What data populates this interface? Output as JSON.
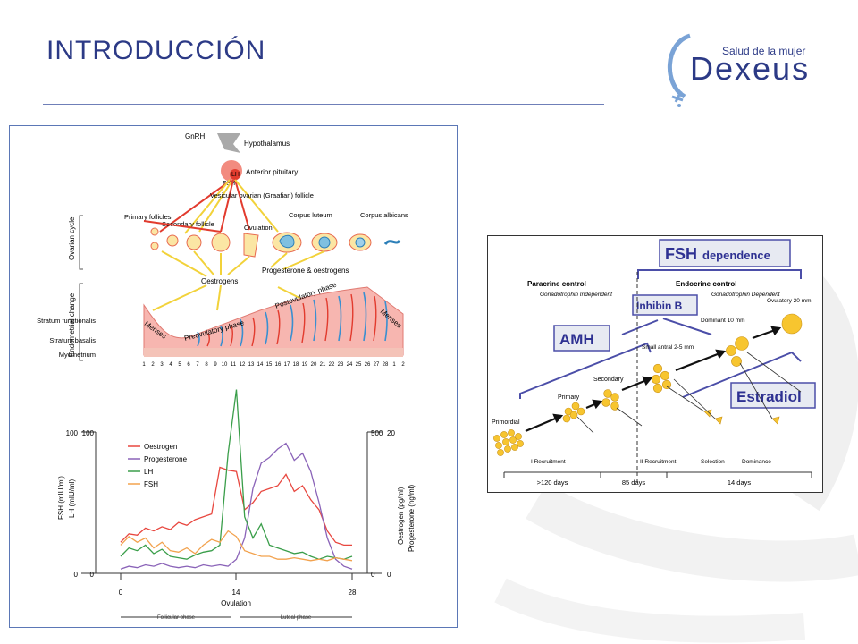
{
  "slide": {
    "title": "INTRODUCCIÓN",
    "logo_tagline": "Salud de la mujer",
    "logo_name": "Dexeus"
  },
  "cycle_diagram": {
    "hormones": [
      "GnRH",
      "Hypothalamus",
      "Anterior pituitary",
      "LH",
      "FSH"
    ],
    "ovarian_labels": [
      "Primary follicles",
      "Secondary follicle",
      "Vesicular ovarian (Graafian) follicle",
      "Ovulation",
      "Corpus luteum",
      "Corpus albicans"
    ],
    "ovarian_cycle_label": "Ovarian cycle",
    "endometrial_change_label": "Endometrial change",
    "oestrogens_label": "Oestrogens",
    "progesterone_label": "Progesterone & oestrogens",
    "layers": [
      "Stratum functionalis",
      "Stratum basalis",
      "Myometrium"
    ],
    "phases": [
      "Menses",
      "Preovulatory phase",
      "Postovulatory phase",
      "Menses"
    ],
    "day_numbers": [
      "1",
      "2",
      "3",
      "4",
      "5",
      "6",
      "7",
      "8",
      "9",
      "10",
      "11",
      "12",
      "13",
      "14",
      "15",
      "16",
      "17",
      "18",
      "19",
      "20",
      "21",
      "22",
      "23",
      "24",
      "25",
      "26",
      "27",
      "28",
      "1",
      "2"
    ]
  },
  "chart_data": {
    "type": "line",
    "x": [
      0,
      1,
      2,
      3,
      4,
      5,
      6,
      7,
      8,
      9,
      10,
      11,
      12,
      13,
      14,
      15,
      16,
      17,
      18,
      19,
      20,
      21,
      22,
      23,
      24,
      25,
      26,
      27,
      28
    ],
    "series": [
      {
        "name": "Oestrogen",
        "color": "#e8473f",
        "values": [
          22,
          28,
          27,
          32,
          30,
          33,
          31,
          36,
          34,
          38,
          40,
          42,
          75,
          73,
          72,
          45,
          50,
          58,
          60,
          62,
          70,
          58,
          62,
          52,
          45,
          30,
          22,
          20,
          20
        ]
      },
      {
        "name": "Progesterone",
        "color": "#8a63b8",
        "values": [
          3,
          5,
          4,
          6,
          5,
          7,
          5,
          4,
          5,
          4,
          6,
          5,
          6,
          5,
          10,
          25,
          60,
          78,
          82,
          88,
          92,
          80,
          85,
          72,
          50,
          25,
          10,
          5,
          3
        ]
      },
      {
        "name": "LH",
        "color": "#3a9e4a",
        "values": [
          12,
          18,
          16,
          20,
          14,
          17,
          12,
          11,
          10,
          13,
          15,
          16,
          20,
          85,
          130,
          40,
          25,
          35,
          20,
          18,
          16,
          14,
          15,
          12,
          10,
          12,
          11,
          10,
          12
        ]
      },
      {
        "name": "FSH",
        "color": "#f2a24e",
        "values": [
          20,
          26,
          22,
          25,
          18,
          22,
          16,
          15,
          18,
          14,
          20,
          24,
          22,
          30,
          26,
          16,
          14,
          12,
          12,
          10,
          10,
          11,
          10,
          9,
          10,
          9,
          11,
          10,
          9
        ]
      }
    ],
    "left_axis_labels": [
      "FSH (mIU/ml)",
      "LH (mIU/ml)"
    ],
    "right_axis_labels": [
      "Oestrogen (pg/ml)",
      "Progesterone (ng/ml)"
    ],
    "left_ticks_a": [
      "100",
      "0"
    ],
    "left_ticks_b": [
      "100",
      "0"
    ],
    "right_ticks_a": [
      "500",
      "0"
    ],
    "right_ticks_b": [
      "20",
      "0"
    ],
    "x_ticks": [
      "0",
      "14",
      "28"
    ],
    "xlabel": "Ovulation",
    "phase_labels": [
      "Follicular phase",
      "Luteal phase"
    ],
    "ylim": [
      0,
      100
    ]
  },
  "follicle_diagram": {
    "fsh_title_bold": "FSH",
    "fsh_title_rest": "dependence",
    "paracrine_title": "Paracrine control",
    "paracrine_sub": "Gonadotrophin Independent",
    "endocrine_title": "Endocrine control",
    "endocrine_sub": "Gonadotrophin Dependent",
    "inhibin_label": "Inhibin B",
    "amh_label": "AMH",
    "estradiol_label": "Estradiol",
    "stages": [
      "Primordial",
      "Primary",
      "Secondary",
      "Small antral 2-5 mm",
      "Dominant 10 mm",
      "Ovulatory 20 mm"
    ],
    "bottom_labels": [
      "I Recruitment",
      "II Recruitment",
      "Selection",
      "Dominance"
    ],
    "durations": [
      ">120 days",
      "85 days",
      "14 days"
    ]
  }
}
